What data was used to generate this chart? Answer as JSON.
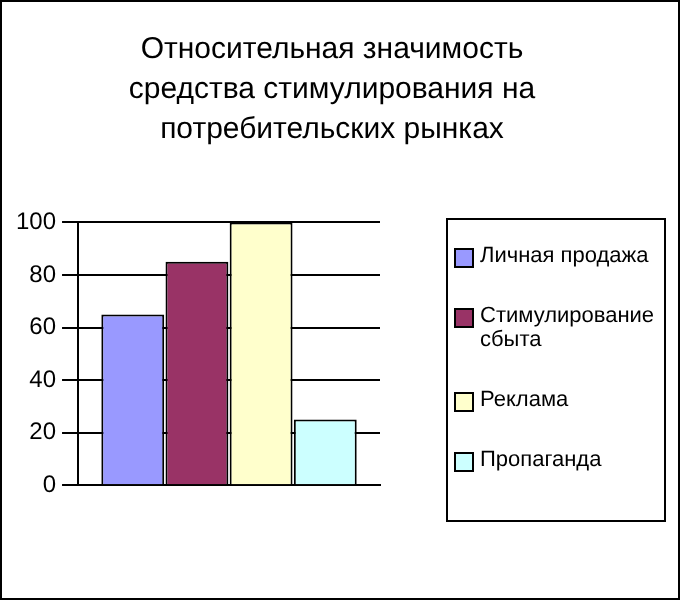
{
  "chart_data": {
    "type": "bar",
    "title": "Относительная значимость средства стимулирования на потребительских рынках",
    "categories": [
      null
    ],
    "series": [
      {
        "name": "Личная продажа",
        "color": "#9999ff",
        "values": [
          65
        ]
      },
      {
        "name": "Стимулирование сбыта",
        "color": "#993366",
        "values": [
          85
        ]
      },
      {
        "name": "Реклама",
        "color": "#ffffcc",
        "values": [
          100
        ]
      },
      {
        "name": "Пропаганда",
        "color": "#ccffff",
        "values": [
          25
        ]
      }
    ],
    "ylim": [
      0,
      100
    ],
    "yticks": [
      0,
      20,
      40,
      60,
      80,
      100
    ],
    "grid": "y",
    "legend": "right"
  }
}
